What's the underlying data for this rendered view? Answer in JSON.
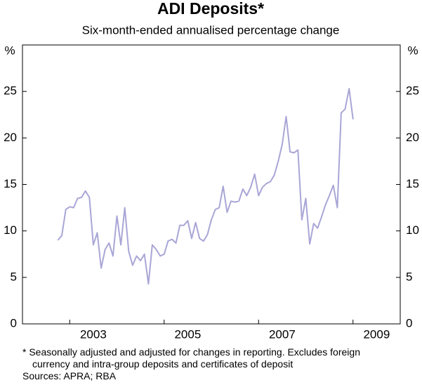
{
  "chart_data": {
    "type": "line",
    "title": "ADI Deposits*",
    "subtitle": "Six-month-ended annualised percentage change",
    "y_label": "%",
    "x": [
      2002.75,
      2002.833,
      2002.917,
      2003.0,
      2003.083,
      2003.167,
      2003.25,
      2003.333,
      2003.417,
      2003.5,
      2003.583,
      2003.667,
      2003.75,
      2003.833,
      2003.917,
      2004.0,
      2004.083,
      2004.167,
      2004.25,
      2004.333,
      2004.417,
      2004.5,
      2004.583,
      2004.667,
      2004.75,
      2004.833,
      2004.917,
      2005.0,
      2005.083,
      2005.167,
      2005.25,
      2005.333,
      2005.417,
      2005.5,
      2005.583,
      2005.667,
      2005.75,
      2005.833,
      2005.917,
      2006.0,
      2006.083,
      2006.167,
      2006.25,
      2006.333,
      2006.417,
      2006.5,
      2006.583,
      2006.667,
      2006.75,
      2006.833,
      2006.917,
      2007.0,
      2007.083,
      2007.167,
      2007.25,
      2007.333,
      2007.417,
      2007.5,
      2007.583,
      2007.667,
      2007.75,
      2007.833,
      2007.917,
      2008.0,
      2008.083,
      2008.167,
      2008.25,
      2008.333,
      2008.417,
      2008.5,
      2008.583,
      2008.667,
      2008.75,
      2008.833,
      2008.917,
      2009.0,
      2009.083,
      2009.167
    ],
    "series": [
      {
        "color": "#a9a6d6",
        "values": [
          9.0,
          9.5,
          12.3,
          12.6,
          12.5,
          13.5,
          13.6,
          14.3,
          13.6,
          8.5,
          9.8,
          6.0,
          8.0,
          8.7,
          7.3,
          11.6,
          8.5,
          12.5,
          7.8,
          6.3,
          7.3,
          6.8,
          7.5,
          4.3,
          8.5,
          8.0,
          7.3,
          7.5,
          8.9,
          9.1,
          8.7,
          10.6,
          10.6,
          11.1,
          9.2,
          10.9,
          9.2,
          8.9,
          9.6,
          11.2,
          12.3,
          12.5,
          14.8,
          12.0,
          13.2,
          13.1,
          13.2,
          14.5,
          13.8,
          14.7,
          16.1,
          13.8,
          14.7,
          15.1,
          15.3,
          16.0,
          17.5,
          19.3,
          22.3,
          18.5,
          18.4,
          18.7,
          11.2,
          13.5,
          8.6,
          10.8,
          10.3,
          11.5,
          12.8,
          13.8,
          14.9,
          12.5,
          22.7,
          23.1,
          25.3,
          22.0,
          null,
          null
        ]
      }
    ],
    "xlim": [
      2002,
      2010
    ],
    "xticks": [
      2003,
      2005,
      2007,
      2009
    ],
    "ylim": [
      0,
      30
    ],
    "yticks": [
      0,
      5,
      10,
      15,
      20,
      25
    ],
    "notes": [
      "*  Seasonally adjusted and adjusted for changes in reporting. Excludes foreign currency and intra-group deposits and certificates of deposit"
    ],
    "source": "Sources: APRA; RBA"
  }
}
